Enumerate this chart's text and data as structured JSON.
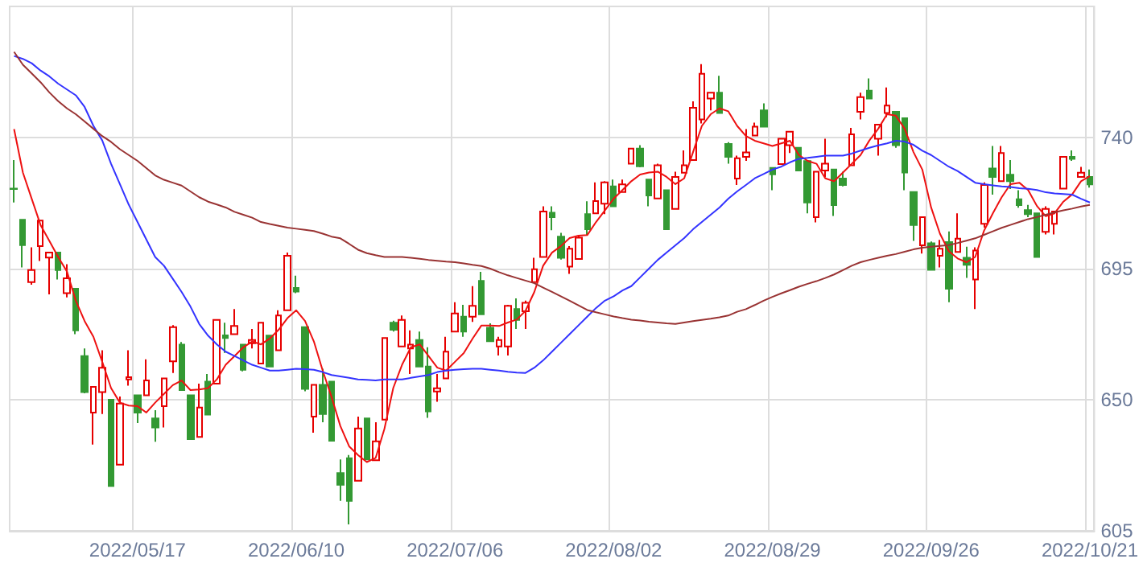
{
  "chart_data": {
    "type": "candlestick",
    "categories": [
      null,
      null,
      null,
      null,
      null,
      null,
      null,
      null,
      null,
      null,
      null,
      null,
      null,
      null,
      "2022/05/17",
      null,
      null,
      null,
      null,
      null,
      null,
      null,
      null,
      null,
      null,
      null,
      null,
      null,
      null,
      null,
      null,
      null,
      "2022/06/10",
      null,
      null,
      null,
      null,
      null,
      null,
      null,
      null,
      null,
      null,
      null,
      null,
      null,
      null,
      null,
      null,
      null,
      "2022/07/06",
      null,
      null,
      null,
      null,
      null,
      null,
      null,
      null,
      null,
      null,
      null,
      null,
      null,
      null,
      null,
      null,
      null,
      "2022/08/02",
      null,
      null,
      null,
      null,
      null,
      null,
      null,
      null,
      null,
      null,
      null,
      null,
      null,
      null,
      null,
      null,
      null,
      "2022/08/29",
      null,
      null,
      null,
      null,
      null,
      null,
      null,
      null,
      null,
      null,
      null,
      null,
      null,
      null,
      null,
      null,
      null,
      "2022/09/26",
      null,
      null,
      null,
      null,
      null,
      null,
      null,
      null,
      null,
      null,
      null,
      null,
      null,
      null,
      null,
      null,
      null,
      "2022/10/21"
    ],
    "series": [
      {
        "ohlc": [
          [
            722.5,
            732.3,
            717.7,
            722.3
          ],
          [
            711.8,
            711.8,
            695.4,
            703.1
          ],
          [
            690.4,
            702.3,
            689.5,
            694.5
          ],
          [
            702.7,
            711.5,
            697.6,
            711.5
          ],
          [
            698.8,
            700.5,
            686.2,
            700.5
          ],
          [
            700.5,
            700.5,
            691.3,
            694.5
          ],
          [
            686.6,
            696.5,
            685.1,
            691.7
          ],
          [
            688.1,
            688.1,
            672.5,
            673.8
          ],
          [
            665.0,
            667.6,
            652.2,
            652.6
          ],
          [
            645.6,
            654.4,
            634.6,
            654.4
          ],
          [
            652.6,
            667.0,
            645.1,
            661.0
          ],
          [
            650.0,
            650.0,
            620.4,
            620.4
          ],
          [
            627.7,
            651.1,
            627.7,
            648.7
          ],
          [
            657.0,
            667.0,
            654.8,
            657.7
          ],
          [
            651.5,
            651.5,
            642.0,
            645.6
          ],
          [
            651.5,
            663.9,
            651.5,
            656.6
          ],
          [
            643.6,
            646.4,
            635.6,
            640.5
          ],
          [
            647.8,
            657.3,
            640.5,
            657.3
          ],
          [
            663.2,
            675.6,
            659.2,
            674.9
          ],
          [
            668.9,
            669.8,
            653.3,
            653.3
          ],
          [
            651.5,
            651.5,
            636.5,
            636.5
          ],
          [
            637.2,
            655.5,
            637.2,
            647.3
          ],
          [
            656.2,
            658.8,
            644.9,
            644.9
          ],
          [
            655.5,
            677.4,
            655.5,
            677.4
          ],
          [
            672.1,
            676.4,
            666.1,
            671.2
          ],
          [
            672.5,
            681.1,
            672.5,
            675.3
          ],
          [
            668.9,
            668.9,
            659.7,
            660.3
          ],
          [
            669.4,
            674.3,
            667.6,
            670.5
          ],
          [
            662.4,
            676.4,
            662.4,
            676.4
          ],
          [
            672.0,
            672.0,
            661.4,
            661.4
          ],
          [
            667.0,
            680.7,
            667.0,
            678.9
          ],
          [
            680.7,
            700.5,
            680.7,
            699.4
          ],
          [
            688.4,
            692.6,
            686.6,
            687.1
          ],
          [
            674.9,
            674.9,
            652.9,
            653.7
          ],
          [
            644.2,
            655.1,
            638.7,
            655.1
          ],
          [
            655.1,
            660.6,
            642.3,
            645.1
          ],
          [
            656.2,
            656.2,
            635.9,
            635.9
          ],
          [
            624.8,
            629.5,
            615.3,
            620.8
          ],
          [
            629.9,
            631.0,
            607.2,
            615.3
          ],
          [
            622.2,
            644.2,
            622.2,
            640.1
          ],
          [
            643.6,
            643.6,
            629.5,
            629.5
          ],
          [
            629.2,
            642.3,
            629.2,
            635.7
          ],
          [
            643.2,
            671.2,
            643.2,
            671.2
          ],
          [
            676.4,
            677.1,
            673.4,
            674.0
          ],
          [
            668.3,
            678.9,
            668.3,
            677.4
          ],
          [
            667.6,
            673.8,
            658.8,
            668.9
          ],
          [
            670.5,
            673.4,
            661.4,
            661.4
          ],
          [
            661.4,
            668.0,
            643.8,
            646.0
          ],
          [
            652.8,
            658.8,
            649.3,
            653.9
          ],
          [
            657.3,
            671.6,
            657.3,
            666.5
          ],
          [
            673.4,
            683.5,
            673.4,
            679.6
          ],
          [
            678.5,
            682.6,
            671.6,
            673.4
          ],
          [
            678.5,
            689.0,
            676.7,
            682.2
          ],
          [
            690.8,
            693.9,
            679.3,
            679.3
          ],
          [
            674.7,
            676.2,
            670.1,
            670.1
          ],
          [
            668.3,
            671.6,
            665.2,
            670.5
          ],
          [
            668.3,
            682.6,
            665.2,
            682.2
          ],
          [
            681.1,
            684.8,
            674.3,
            677.4
          ],
          [
            680.4,
            684.0,
            674.3,
            683.3
          ],
          [
            690.4,
            698.7,
            690.4,
            694.8
          ],
          [
            699.0,
            716.4,
            699.0,
            714.6
          ],
          [
            714.2,
            716.4,
            708.2,
            712.7
          ],
          [
            706.0,
            707.3,
            698.1,
            698.7
          ],
          [
            695.7,
            702.7,
            693.2,
            701.8
          ],
          [
            698.3,
            706.3,
            698.3,
            705.6
          ],
          [
            713.7,
            718.1,
            706.3,
            708.5
          ],
          [
            714.0,
            724.6,
            714.0,
            718.2
          ],
          [
            717.3,
            725.0,
            713.7,
            724.6
          ],
          [
            723.2,
            725.6,
            716.4,
            716.4
          ],
          [
            721.3,
            725.6,
            721.3,
            723.9
          ],
          [
            731.0,
            736.3,
            731.0,
            736.2
          ],
          [
            736.2,
            737.4,
            729.8,
            730.1
          ],
          [
            725.6,
            725.6,
            716.4,
            720.1
          ],
          [
            719.1,
            731.0,
            719.1,
            730.5
          ],
          [
            721.9,
            722.1,
            708.5,
            708.5
          ],
          [
            715.5,
            728.3,
            715.5,
            726.5
          ],
          [
            727.9,
            735.6,
            727.9,
            730.5
          ],
          [
            732.3,
            752.4,
            732.3,
            750.2
          ],
          [
            746.2,
            765.2,
            744.8,
            761.9
          ],
          [
            753.4,
            755.4,
            749.3,
            755.4
          ],
          [
            755.4,
            761.2,
            748.4,
            748.4
          ],
          [
            737.8,
            738.4,
            731.0,
            733.4
          ],
          [
            725.9,
            733.8,
            723.7,
            732.9
          ],
          [
            733.4,
            742.9,
            732.0,
            734.9
          ],
          [
            740.7,
            745.1,
            740.7,
            743.7
          ],
          [
            749.3,
            751.7,
            743.7,
            743.7
          ],
          [
            729.6,
            729.6,
            721.9,
            727.4
          ],
          [
            730.9,
            739.6,
            730.9,
            739.6
          ],
          [
            737.4,
            742.0,
            734.7,
            742.0
          ],
          [
            736.5,
            736.5,
            728.7,
            728.7
          ],
          [
            731.9,
            731.9,
            714.0,
            717.7
          ],
          [
            712.7,
            728.3,
            710.9,
            728.3
          ],
          [
            728.7,
            739.6,
            726.4,
            731.0
          ],
          [
            729.0,
            729.0,
            713.1,
            716.8
          ],
          [
            725.9,
            728.3,
            723.2,
            723.7
          ],
          [
            730.5,
            743.3,
            730.5,
            741.1
          ],
          [
            748.8,
            755.4,
            746.2,
            753.9
          ],
          [
            756.1,
            760.3,
            753.4,
            753.4
          ],
          [
            739.6,
            744.4,
            733.8,
            744.4
          ],
          [
            748.4,
            757.2,
            747.0,
            751.0
          ],
          [
            748.8,
            748.8,
            736.5,
            737.4
          ],
          [
            746.6,
            746.6,
            721.9,
            728.0
          ],
          [
            721.3,
            721.3,
            704.5,
            710.0
          ],
          [
            703.0,
            712.7,
            700.2,
            712.7
          ],
          [
            703.7,
            704.3,
            694.6,
            694.6
          ],
          [
            699.4,
            704.9,
            695.4,
            701.8
          ],
          [
            704.1,
            707.8,
            683.5,
            688.1
          ],
          [
            700.7,
            714.0,
            700.7,
            705.3
          ],
          [
            698.7,
            702.5,
            691.8,
            696.3
          ],
          [
            691.3,
            702.3,
            681.1,
            701.2
          ],
          [
            710.4,
            724.6,
            709.1,
            723.7
          ],
          [
            729.4,
            737.1,
            720.4,
            726.5
          ],
          [
            725.0,
            737.1,
            725.0,
            734.7
          ],
          [
            727.2,
            732.3,
            722.3,
            725.0
          ],
          [
            718.8,
            721.9,
            715.9,
            716.8
          ],
          [
            715.1,
            716.9,
            712.7,
            713.7
          ],
          [
            714.0,
            714.0,
            699.0,
            699.0
          ],
          [
            707.6,
            716.4,
            706.7,
            715.5
          ],
          [
            710.4,
            714.6,
            706.7,
            714.6
          ],
          [
            722.5,
            733.4,
            722.5,
            733.4
          ],
          [
            733.4,
            735.6,
            732.0,
            732.7
          ],
          [
            726.5,
            729.9,
            726.5,
            727.9
          ],
          [
            726.5,
            729.0,
            722.8,
            723.9
          ]
        ],
        "colors": [
          "#339933",
          "#339933",
          "#e60000",
          "#e60000",
          "#e60000",
          "#339933",
          "#e60000",
          "#339933",
          "#339933",
          "#e60000",
          "#e60000",
          "#339933",
          "#e60000",
          "#e60000",
          "#339933",
          "#e60000",
          "#339933",
          "#e60000",
          "#e60000",
          "#339933",
          "#339933",
          "#e60000",
          "#339933",
          "#e60000",
          "#339933",
          "#e60000",
          "#339933",
          "#e60000",
          "#e60000",
          "#339933",
          "#e60000",
          "#e60000",
          "#339933",
          "#339933",
          "#e60000",
          "#339933",
          "#339933",
          "#339933",
          "#339933",
          "#e60000",
          "#339933",
          "#e60000",
          "#e60000",
          "#339933",
          "#e60000",
          "#e60000",
          "#339933",
          "#339933",
          "#e60000",
          "#e60000",
          "#e60000",
          "#339933",
          "#e60000",
          "#339933",
          "#339933",
          "#e60000",
          "#e60000",
          "#339933",
          "#e60000",
          "#e60000",
          "#e60000",
          "#339933",
          "#339933",
          "#e60000",
          "#e60000",
          "#339933",
          "#e60000",
          "#e60000",
          "#339933",
          "#e60000",
          "#e60000",
          "#339933",
          "#339933",
          "#e60000",
          "#339933",
          "#e60000",
          "#e60000",
          "#e60000",
          "#e60000",
          "#e60000",
          "#339933",
          "#339933",
          "#e60000",
          "#e60000",
          "#e60000",
          "#339933",
          "#339933",
          "#e60000",
          "#e60000",
          "#339933",
          "#339933",
          "#e60000",
          "#e60000",
          "#339933",
          "#339933",
          "#e60000",
          "#e60000",
          "#339933",
          "#e60000",
          "#e60000",
          "#339933",
          "#339933",
          "#339933",
          "#e60000",
          "#339933",
          "#e60000",
          "#339933",
          "#e60000",
          "#339933",
          "#e60000",
          "#e60000",
          "#339933",
          "#e60000",
          "#339933",
          "#339933",
          "#339933",
          "#339933",
          "#e60000",
          "#e60000",
          "#e60000",
          "#339933",
          "#e60000",
          "#339933"
        ]
      },
      {
        "type": "line",
        "color": "#ee1111",
        "values": [
          742.9,
          728,
          719,
          710,
          704.5,
          699,
          694,
          684,
          677,
          671.6,
          663,
          654,
          649,
          648,
          647.8,
          645.6,
          649,
          652,
          655,
          656.6,
          653.3,
          653.5,
          654,
          657,
          662,
          665,
          668,
          670,
          669,
          671,
          674,
          678,
          680.7,
          677,
          670,
          660,
          651,
          641,
          634,
          631,
          628.6,
          630,
          640,
          654,
          662,
          668,
          669,
          665,
          661,
          660,
          663,
          666,
          671,
          675.5,
          675.5,
          675.3,
          676.5,
          677.5,
          680.5,
          687,
          696,
          700.5,
          702.7,
          705.5,
          706.3,
          706.5,
          711,
          715,
          719,
          722,
          725,
          727.3,
          728,
          728.3,
          726.5,
          724,
          726,
          735,
          744,
          748,
          750,
          749,
          744,
          740.5,
          738.9,
          738,
          737.1,
          738,
          738.9,
          734,
          732,
          731,
          726,
          725,
          728,
          731,
          734,
          739,
          743,
          748,
          747.5,
          743,
          735,
          729,
          716,
          707,
          701,
          698.5,
          697.2,
          699,
          708,
          714,
          719.5,
          724,
          724.5,
          722,
          716.5,
          713,
          714,
          718,
          720.5,
          725,
          726.8
        ]
      },
      {
        "type": "line",
        "color": "#3333ff",
        "values": [
          768,
          767,
          765.5,
          763,
          761,
          758.5,
          756.5,
          754.5,
          750.5,
          744,
          739,
          731,
          724,
          717,
          711,
          705,
          699,
          696,
          691.5,
          687,
          682,
          676,
          672,
          669,
          666.5,
          665,
          663.5,
          662,
          661,
          660,
          660,
          660.3,
          660.6,
          660.5,
          660.3,
          659.5,
          658.5,
          658,
          657.5,
          657,
          656.8,
          656.6,
          657,
          657,
          657,
          657.5,
          658,
          658.5,
          659.5,
          660,
          660.3,
          660.5,
          660.6,
          660.6,
          660.3,
          660,
          659.6,
          659.3,
          659.2,
          661,
          663.5,
          666.5,
          669.5,
          672.5,
          675.5,
          678.5,
          681.5,
          684,
          685.5,
          687.5,
          689,
          692,
          695,
          698,
          700.5,
          703,
          705.5,
          708.5,
          711,
          713.5,
          716,
          719,
          721.5,
          723.7,
          726,
          727.5,
          729,
          730,
          731.5,
          732.7,
          733,
          733.4,
          733.8,
          733.8,
          733.8,
          734.5,
          735.5,
          736.5,
          737.3,
          738,
          738.9,
          738.6,
          737.5,
          735.5,
          734,
          732,
          730,
          728.5,
          726.5,
          724.5,
          724,
          723.6,
          723.2,
          723,
          722.6,
          722.4,
          722,
          721.2,
          720.8,
          720.6,
          720.4,
          719,
          717.7
        ]
      },
      {
        "type": "line",
        "color": "#993333",
        "values": [
          769.4,
          765,
          762,
          759,
          755.5,
          752.5,
          750,
          748,
          745.5,
          743,
          740.5,
          738.5,
          736,
          734,
          732,
          729.5,
          727,
          725.5,
          724.5,
          723.5,
          721.5,
          719.5,
          718,
          717,
          716,
          714.5,
          713.5,
          712.5,
          711,
          710.3,
          709.7,
          709.1,
          708.7,
          708.3,
          707.9,
          707,
          706,
          705.4,
          703.5,
          701.5,
          700.3,
          699.6,
          699,
          699,
          699,
          698.7,
          698.4,
          698,
          697.7,
          697.4,
          697.2,
          696.8,
          696.3,
          695.9,
          695,
          693.8,
          692.7,
          691.8,
          690.9,
          690,
          688.5,
          687,
          685.5,
          684,
          682.4,
          680.8,
          680,
          679.3,
          678.6,
          678,
          677.5,
          677.2,
          676.8,
          676.5,
          676.2,
          676,
          676.5,
          677,
          677.4,
          677.8,
          678.3,
          678.9,
          680.2,
          681.1,
          682.5,
          684,
          685.3,
          686.5,
          687.6,
          688.8,
          689.8,
          690.7,
          691.8,
          693,
          694.5,
          696,
          697.2,
          698,
          698.7,
          699.4,
          700,
          700.8,
          701.6,
          702.2,
          702.5,
          702.8,
          703.1,
          703.8,
          704.6,
          705.4,
          706.6,
          707.8,
          709,
          710,
          711,
          712,
          712.7,
          713.5,
          714.3,
          715,
          715.6,
          716.3,
          716.9
        ]
      }
    ],
    "ylim": [
      605,
      785
    ],
    "yticks": [
      605,
      650,
      695,
      740
    ],
    "grid": true,
    "marker": "none"
  }
}
